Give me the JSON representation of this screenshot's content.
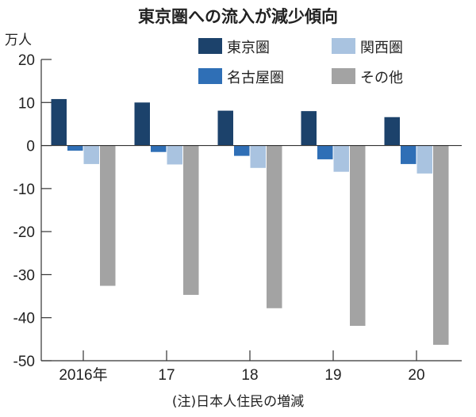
{
  "chart_data": {
    "type": "bar",
    "title": "東京圏への流入が減少傾向",
    "ylabel": "万人",
    "xlabel": "",
    "note": "(注)日本人住民の増減",
    "categories": [
      "2016年",
      "17",
      "18",
      "19",
      "20"
    ],
    "ylim": [
      -50,
      20
    ],
    "yticks": [
      20,
      10,
      0,
      -10,
      -20,
      -30,
      -40,
      -50
    ],
    "grid": false,
    "legend_position": "top-right",
    "series": [
      {
        "name": "東京圏",
        "color": "#1c426b",
        "values": [
          10.8,
          10.0,
          8.1,
          8.0,
          6.6
        ]
      },
      {
        "name": "名古屋圏",
        "color": "#2f6fb6",
        "values": [
          -1.2,
          -1.5,
          -2.4,
          -3.2,
          -4.3
        ]
      },
      {
        "name": "関西圏",
        "color": "#a9c3e0",
        "values": [
          -4.3,
          -4.4,
          -5.2,
          -6.1,
          -6.5
        ]
      },
      {
        "name": "その他",
        "color": "#a3a3a3",
        "values": [
          -32.6,
          -34.7,
          -37.8,
          -41.9,
          -46.3
        ]
      }
    ]
  }
}
